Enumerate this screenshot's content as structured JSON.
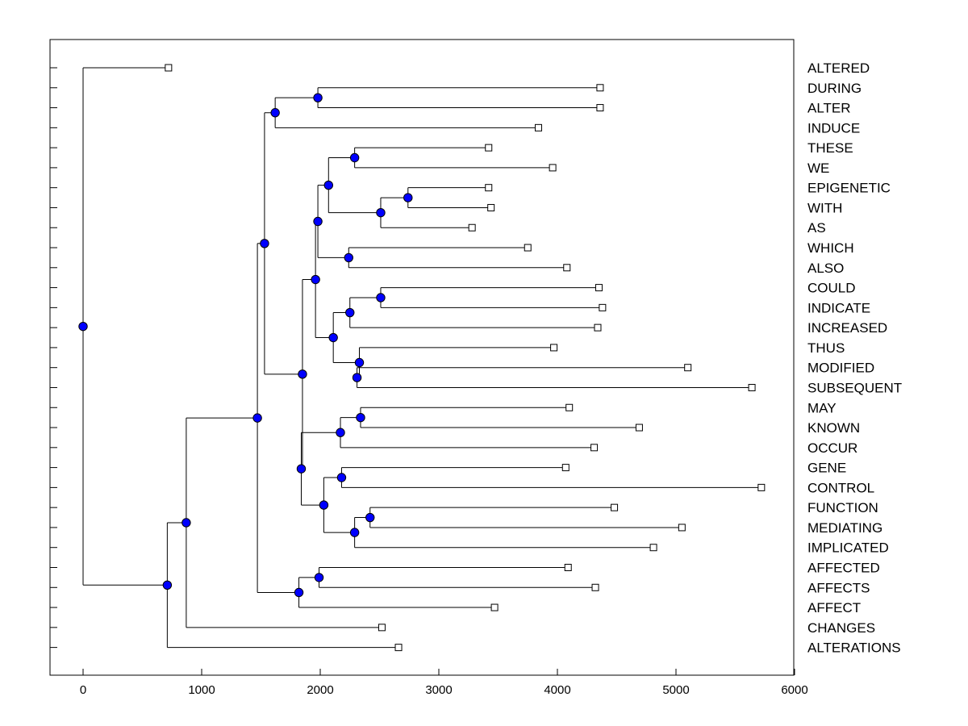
{
  "chart_data": {
    "type": "dendrogram",
    "orientation": "horizontal",
    "title": "",
    "xlabel": "",
    "ylabel": "",
    "xlim": [
      -300,
      6000
    ],
    "x_ticks": [
      0,
      1000,
      2000,
      3000,
      4000,
      5000,
      6000
    ],
    "x_tick_labels": [
      "0",
      "1000",
      "2000",
      "3000",
      "4000",
      "5000",
      "6000"
    ],
    "leaves": [
      {
        "id": "ALTERED",
        "label": "ALTERED",
        "x": 720
      },
      {
        "id": "DURING",
        "label": "DURING",
        "x": 4360
      },
      {
        "id": "ALTER",
        "label": "ALTER",
        "x": 4360
      },
      {
        "id": "INDUCE",
        "label": "INDUCE",
        "x": 3840
      },
      {
        "id": "THESE",
        "label": "THESE",
        "x": 3420
      },
      {
        "id": "WE",
        "label": "WE",
        "x": 3960
      },
      {
        "id": "EPIGENETIC",
        "label": "EPIGENETIC",
        "x": 3420
      },
      {
        "id": "WITH",
        "label": "WITH",
        "x": 3440
      },
      {
        "id": "AS",
        "label": "AS",
        "x": 3280
      },
      {
        "id": "WHICH",
        "label": "WHICH",
        "x": 3750
      },
      {
        "id": "ALSO",
        "label": "ALSO",
        "x": 4080
      },
      {
        "id": "COULD",
        "label": "COULD",
        "x": 4350
      },
      {
        "id": "INDICATE",
        "label": "INDICATE",
        "x": 4380
      },
      {
        "id": "INCREASED",
        "label": "INCREASED",
        "x": 4340
      },
      {
        "id": "THUS",
        "label": "THUS",
        "x": 3970
      },
      {
        "id": "MODIFIED",
        "label": "MODIFIED",
        "x": 5100
      },
      {
        "id": "SUBSEQUENT",
        "label": "SUBSEQUENT",
        "x": 5640
      },
      {
        "id": "MAY",
        "label": "MAY",
        "x": 4100
      },
      {
        "id": "KNOWN",
        "label": "KNOWN",
        "x": 4690
      },
      {
        "id": "OCCUR",
        "label": "OCCUR",
        "x": 4310
      },
      {
        "id": "GENE",
        "label": "GENE",
        "x": 4070
      },
      {
        "id": "CONTROL",
        "label": "CONTROL",
        "x": 5720
      },
      {
        "id": "FUNCTION",
        "label": "FUNCTION",
        "x": 4480
      },
      {
        "id": "MEDIATING",
        "label": "MEDIATING",
        "x": 5050
      },
      {
        "id": "IMPLICATED",
        "label": "IMPLICATED",
        "x": 4810
      },
      {
        "id": "AFFECTED",
        "label": "AFFECTED",
        "x": 4090
      },
      {
        "id": "AFFECTS",
        "label": "AFFECTS",
        "x": 4320
      },
      {
        "id": "AFFECT",
        "label": "AFFECT",
        "x": 3470
      },
      {
        "id": "CHANGES",
        "label": "CHANGES",
        "x": 2520
      },
      {
        "id": "ALTERATIONS",
        "label": "ALTERATIONS",
        "x": 2660
      }
    ],
    "nodes": [
      {
        "id": "n_during_alter",
        "x": 1980,
        "children": [
          "DURING",
          "ALTER"
        ]
      },
      {
        "id": "n_top3",
        "x": 1620,
        "children": [
          "n_during_alter",
          "INDUCE"
        ]
      },
      {
        "id": "n_these_we",
        "x": 2290,
        "children": [
          "THESE",
          "WE"
        ]
      },
      {
        "id": "n_epi_with",
        "x": 2740,
        "children": [
          "EPIGENETIC",
          "WITH"
        ]
      },
      {
        "id": "n_epi_as",
        "x": 2510,
        "children": [
          "n_epi_with",
          "AS"
        ]
      },
      {
        "id": "n_these_as",
        "x": 2070,
        "children": [
          "n_these_we",
          "n_epi_as"
        ]
      },
      {
        "id": "n_which_also",
        "x": 2240,
        "children": [
          "WHICH",
          "ALSO"
        ]
      },
      {
        "id": "n_these_also",
        "x": 1980,
        "children": [
          "n_these_as",
          "n_which_also"
        ]
      },
      {
        "id": "n_could_indicate",
        "x": 2510,
        "children": [
          "COULD",
          "INDICATE"
        ]
      },
      {
        "id": "n_could_increased",
        "x": 2250,
        "children": [
          "n_could_indicate",
          "INCREASED"
        ]
      },
      {
        "id": "n_modified_subsequent",
        "x": 2310,
        "children": [
          "MODIFIED",
          "SUBSEQUENT"
        ]
      },
      {
        "id": "n_thus_subsequent",
        "x": 2330,
        "children": [
          "THUS",
          "n_modified_subsequent"
        ]
      },
      {
        "id": "n_could_subsequent",
        "x": 2110,
        "children": [
          "n_could_increased",
          "n_thus_subsequent"
        ]
      },
      {
        "id": "n_these_subsequent",
        "x": 1960,
        "children": [
          "n_these_also",
          "n_could_subsequent"
        ]
      },
      {
        "id": "n_may_known",
        "x": 2340,
        "children": [
          "MAY",
          "KNOWN"
        ]
      },
      {
        "id": "n_may_occur",
        "x": 2170,
        "children": [
          "n_may_known",
          "OCCUR"
        ]
      },
      {
        "id": "n_gene_control",
        "x": 2180,
        "children": [
          "GENE",
          "CONTROL"
        ]
      },
      {
        "id": "n_function_mediating",
        "x": 2420,
        "children": [
          "FUNCTION",
          "MEDIATING"
        ]
      },
      {
        "id": "n_function_implicated",
        "x": 2290,
        "children": [
          "n_function_mediating",
          "IMPLICATED"
        ]
      },
      {
        "id": "n_gene_implicated",
        "x": 2030,
        "children": [
          "n_gene_control",
          "n_function_implicated"
        ]
      },
      {
        "id": "n_may_implicated",
        "x": 1840,
        "children": [
          "n_may_occur",
          "n_gene_implicated"
        ]
      },
      {
        "id": "n_these_implicated",
        "x": 1850,
        "children": [
          "n_these_subsequent",
          "n_may_implicated"
        ]
      },
      {
        "id": "n_during_implicated",
        "x": 1530,
        "children": [
          "n_top3",
          "n_these_implicated"
        ]
      },
      {
        "id": "n_affected_affects",
        "x": 1990,
        "children": [
          "AFFECTED",
          "AFFECTS"
        ]
      },
      {
        "id": "n_affected_affect",
        "x": 1820,
        "children": [
          "n_affected_affects",
          "AFFECT"
        ]
      },
      {
        "id": "n_during_affect",
        "x": 1470,
        "children": [
          "n_during_implicated",
          "n_affected_affect"
        ]
      },
      {
        "id": "n_during_changes",
        "x": 870,
        "children": [
          "n_during_affect",
          "CHANGES"
        ]
      },
      {
        "id": "n_during_alterations",
        "x": 710,
        "children": [
          "n_during_changes",
          "ALTERATIONS"
        ]
      },
      {
        "id": "root",
        "x": 0,
        "children": [
          "ALTERED",
          "n_during_alterations"
        ]
      }
    ]
  }
}
